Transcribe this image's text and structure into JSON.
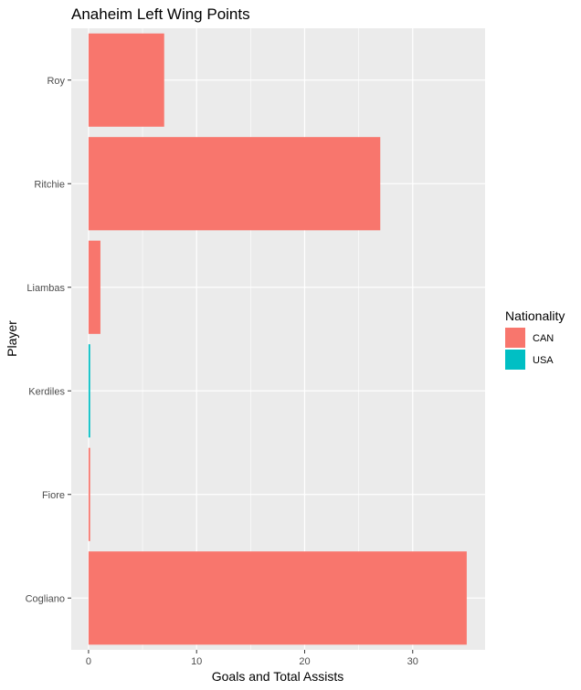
{
  "chart_data": {
    "type": "bar",
    "orientation": "horizontal",
    "title": "Anaheim Left Wing Points",
    "xlabel": "Goals and Total Assists",
    "ylabel": "Player",
    "categories": [
      "Roy",
      "Ritchie",
      "Liambas",
      "Kerdiles",
      "Fiore",
      "Cogliano"
    ],
    "values": [
      7,
      27,
      1.1,
      0.15,
      0.15,
      35
    ],
    "nationality": [
      "CAN",
      "CAN",
      "CAN",
      "USA",
      "CAN",
      "CAN"
    ],
    "xlim": [
      -1.6,
      36.7
    ],
    "xticks": [
      0,
      10,
      20,
      30
    ],
    "grid": true,
    "legend": {
      "title": "Nationality",
      "placement": "right",
      "items": [
        {
          "label": "CAN",
          "color": "#F8766D"
        },
        {
          "label": "USA",
          "color": "#00BFC4"
        }
      ]
    },
    "colors": {
      "panel": "#EBEBEB",
      "grid": "#FFFFFF",
      "CAN": "#F8766D",
      "USA": "#00BFC4"
    }
  }
}
